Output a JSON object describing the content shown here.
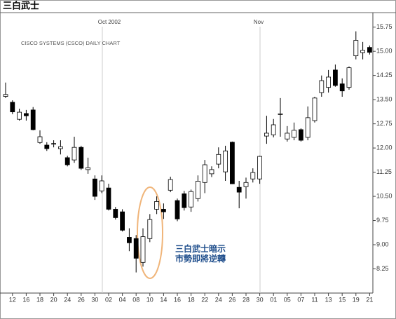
{
  "chart_data": {
    "type": "candlestick",
    "title": "三白武士",
    "subtitle": "CISCO SYSTEMS (CSCO) DAILY CHART",
    "annotations": [
      "Oct 2002",
      "Nov",
      "三白武士暗示",
      "市勢即將逆轉"
    ],
    "categories": [
      null,
      "12",
      null,
      "16",
      null,
      "18",
      null,
      "20",
      null,
      "24",
      null,
      "26",
      null,
      "30",
      null,
      "02",
      null,
      "04",
      null,
      "08",
      null,
      "10",
      null,
      "14",
      null,
      "16",
      null,
      "18",
      null,
      "22",
      null,
      "24",
      null,
      "26",
      null,
      "28",
      null,
      "30",
      null,
      "01",
      null,
      "05",
      null,
      "07",
      null,
      "11",
      null,
      "13",
      null,
      "15",
      null,
      "19",
      null,
      "21"
    ],
    "series": [
      {
        "open": [
          13.6,
          13.42,
          12.89,
          13.07,
          13.18,
          12.17,
          12.09,
          12.12,
          11.98,
          11.7,
          11.63,
          12.02,
          11.33,
          11.04,
          10.67,
          10.76,
          10.1,
          10.02,
          9.23,
          9.19,
          8.45,
          9.19,
          10.1,
          10.1,
          10.69,
          10.37,
          10.58,
          10.17,
          10.43,
          10.93,
          11.2,
          11.5,
          11.26,
          12.18,
          10.78,
          10.8,
          11.04,
          11.04,
          12.37,
          12.41,
          13.04,
          12.28,
          12.33,
          12.57,
          12.33,
          12.85,
          13.72,
          13.88,
          14.42,
          13.99,
          13.88,
          14.86,
          14.96,
          15.12
        ],
        "high": [
          14.03,
          13.48,
          13.22,
          13.18,
          13.27,
          12.55,
          12.18,
          12.24,
          12.24,
          11.76,
          12.35,
          12.07,
          11.7,
          11.15,
          11.15,
          10.89,
          10.17,
          10.1,
          9.51,
          9.3,
          9.51,
          9.95,
          10.5,
          10.28,
          11.11,
          10.43,
          10.67,
          10.71,
          11.15,
          11.63,
          11.43,
          12.02,
          12.07,
          12.2,
          10.98,
          11.08,
          11.37,
          11.76,
          13.0,
          12.9,
          13.55,
          12.68,
          12.79,
          12.61,
          13.29,
          13.59,
          14.25,
          14.42,
          14.59,
          14.16,
          14.53,
          15.62,
          15.29,
          15.18
        ],
        "low": [
          13.55,
          13.05,
          12.85,
          12.85,
          12.55,
          12.13,
          11.91,
          12.02,
          11.8,
          11.43,
          11.54,
          11.32,
          11.2,
          10.39,
          10.6,
          10.06,
          9.78,
          9.41,
          8.8,
          8.14,
          8.32,
          9.08,
          9.95,
          9.8,
          10.63,
          9.73,
          10.06,
          10.02,
          10.34,
          10.6,
          11.1,
          11.37,
          10.98,
          10.88,
          10.13,
          10.43,
          10.93,
          10.89,
          12.13,
          12.33,
          12.35,
          12.2,
          12.24,
          12.2,
          12.24,
          12.79,
          13.59,
          13.72,
          13.9,
          13.59,
          13.81,
          14.75,
          14.75,
          14.9
        ],
        "close": [
          13.66,
          13.12,
          13.11,
          13.0,
          12.57,
          12.35,
          11.98,
          12.14,
          12.04,
          11.48,
          12.02,
          11.37,
          11.39,
          10.5,
          10.98,
          10.1,
          9.84,
          9.45,
          9.06,
          8.58,
          9.25,
          9.78,
          10.34,
          10.02,
          11.02,
          9.8,
          10.15,
          10.65,
          10.97,
          11.48,
          11.33,
          11.8,
          11.91,
          10.89,
          10.63,
          10.93,
          11.24,
          11.74,
          12.46,
          12.72,
          13.06,
          12.46,
          12.55,
          12.24,
          12.94,
          13.55,
          14.09,
          14.2,
          13.94,
          13.77,
          14.49,
          15.34,
          15.03,
          14.97
        ]
      }
    ],
    "up_color": "#ffffff",
    "down_color": "#000000",
    "ylim": [
      7.5,
      16.2
    ],
    "yticks": [
      8.25,
      {
        "value": 9,
        "label": "9.00"
      },
      9.75,
      {
        "value": 10.5,
        "label": "10.50"
      },
      11.25,
      {
        "value": 12,
        "label": "12.00"
      },
      12.75,
      {
        "value": 13.5,
        "label": "13.50"
      },
      14.25,
      {
        "value": 15,
        "label": "15.00"
      },
      15.75
    ]
  }
}
